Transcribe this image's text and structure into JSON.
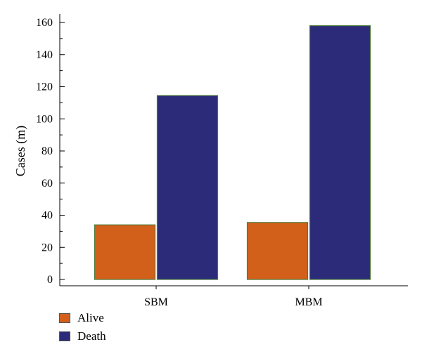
{
  "chart_data": {
    "type": "bar",
    "categories": [
      "SBM",
      "MBM"
    ],
    "series": [
      {
        "name": "Alive",
        "values": [
          34,
          35.5
        ],
        "color": "#D2601A"
      },
      {
        "name": "Death",
        "values": [
          114.5,
          158
        ],
        "color": "#2B2B7A"
      }
    ],
    "xlabel": "",
    "ylabel": "Cases (m)",
    "ylim": [
      0,
      165
    ],
    "yticks": [
      0,
      20,
      40,
      60,
      80,
      100,
      120,
      140,
      160
    ],
    "grid": false,
    "legend_position": "bottom-left"
  }
}
